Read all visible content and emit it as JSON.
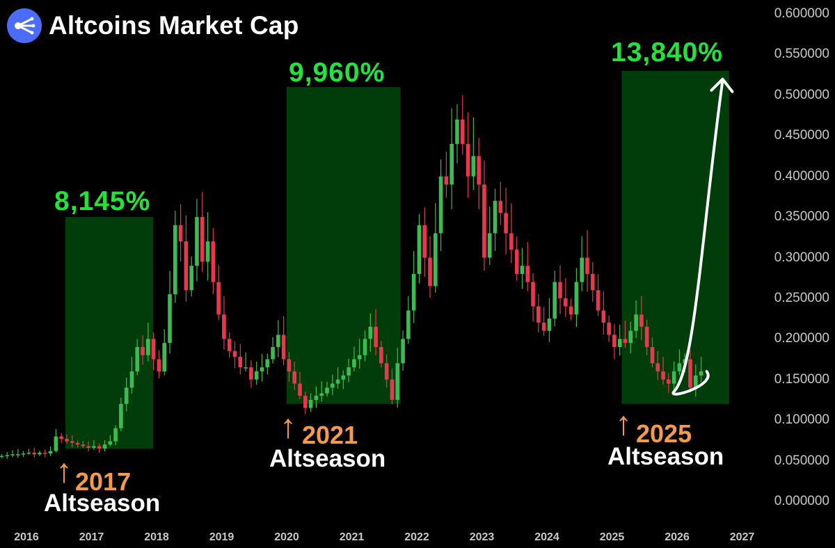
{
  "title": "Altcoins Market Cap",
  "icons": {
    "logo": "stream-lines-icon"
  },
  "colors": {
    "up": "#3cba54",
    "down": "#e8384f",
    "zone": "#003d0a",
    "pct": "#22e33b",
    "year": "#f59a4b"
  },
  "chart_data": {
    "type": "candlestick",
    "title": "Altcoins Market Cap",
    "ylim": [
      0,
      0.6
    ],
    "y_ticks": [
      "0.600000",
      "0.550000",
      "0.500000",
      "0.450000",
      "0.400000",
      "0.350000",
      "0.300000",
      "0.250000",
      "0.200000",
      "0.150000",
      "0.100000",
      "0.050000",
      "0.000000"
    ],
    "x_ticks": [
      "2016",
      "2017",
      "2018",
      "2019",
      "2020",
      "2021",
      "2022",
      "2023",
      "2024",
      "2025",
      "2026",
      "2027"
    ],
    "x_tick_years": [
      2016,
      2017,
      2018,
      2019,
      2020,
      2021,
      2022,
      2023,
      2024,
      2025,
      2026,
      2027
    ],
    "grid": false,
    "candles_monthly_close": [
      0.056,
      0.057,
      0.058,
      0.058,
      0.059,
      0.06,
      0.058,
      0.06,
      0.059,
      0.062,
      0.08,
      0.077,
      0.074,
      0.072,
      0.07,
      0.068,
      0.066,
      0.068,
      0.065,
      0.07,
      0.074,
      0.09,
      0.12,
      0.14,
      0.16,
      0.19,
      0.18,
      0.2,
      0.175,
      0.16,
      0.195,
      0.255,
      0.34,
      0.32,
      0.26,
      0.29,
      0.35,
      0.295,
      0.32,
      0.27,
      0.23,
      0.2,
      0.185,
      0.178,
      0.165,
      0.165,
      0.15,
      0.16,
      0.165,
      0.175,
      0.19,
      0.205,
      0.175,
      0.16,
      0.145,
      0.13,
      0.115,
      0.125,
      0.13,
      0.133,
      0.14,
      0.145,
      0.15,
      0.155,
      0.165,
      0.175,
      0.18,
      0.2,
      0.215,
      0.19,
      0.17,
      0.15,
      0.125,
      0.17,
      0.2,
      0.235,
      0.28,
      0.34,
      0.3,
      0.265,
      0.33,
      0.4,
      0.39,
      0.44,
      0.47,
      0.44,
      0.4,
      0.425,
      0.39,
      0.3,
      0.33,
      0.37,
      0.355,
      0.33,
      0.31,
      0.28,
      0.29,
      0.27,
      0.24,
      0.22,
      0.21,
      0.225,
      0.27,
      0.25,
      0.24,
      0.23,
      0.27,
      0.3,
      0.28,
      0.26,
      0.235,
      0.22,
      0.205,
      0.19,
      0.2,
      0.195,
      0.21,
      0.23,
      0.215,
      0.19,
      0.17,
      0.16,
      0.15,
      0.145,
      0.16,
      0.17,
      0.175,
      0.14,
      0.155,
      0.16
    ],
    "projection": {
      "from_year": 2025.5,
      "to_year": 2026.7,
      "peak": 0.53
    },
    "zones": [
      {
        "label": "8,145%",
        "from_year": 2016.6,
        "to_year": 2017.95,
        "low": 0.065,
        "high": 0.35
      },
      {
        "label": "9,960%",
        "from_year": 2020.0,
        "to_year": 2021.75,
        "low": 0.12,
        "high": 0.51
      },
      {
        "label": "13,840%",
        "from_year": 2025.15,
        "to_year": 2026.8,
        "low": 0.12,
        "high": 0.53
      }
    ],
    "annotations": [
      {
        "year": "2017",
        "text": "Altseason"
      },
      {
        "year": "2021",
        "text": "Altseason"
      },
      {
        "year": "2025",
        "text": "Altseason"
      }
    ]
  }
}
